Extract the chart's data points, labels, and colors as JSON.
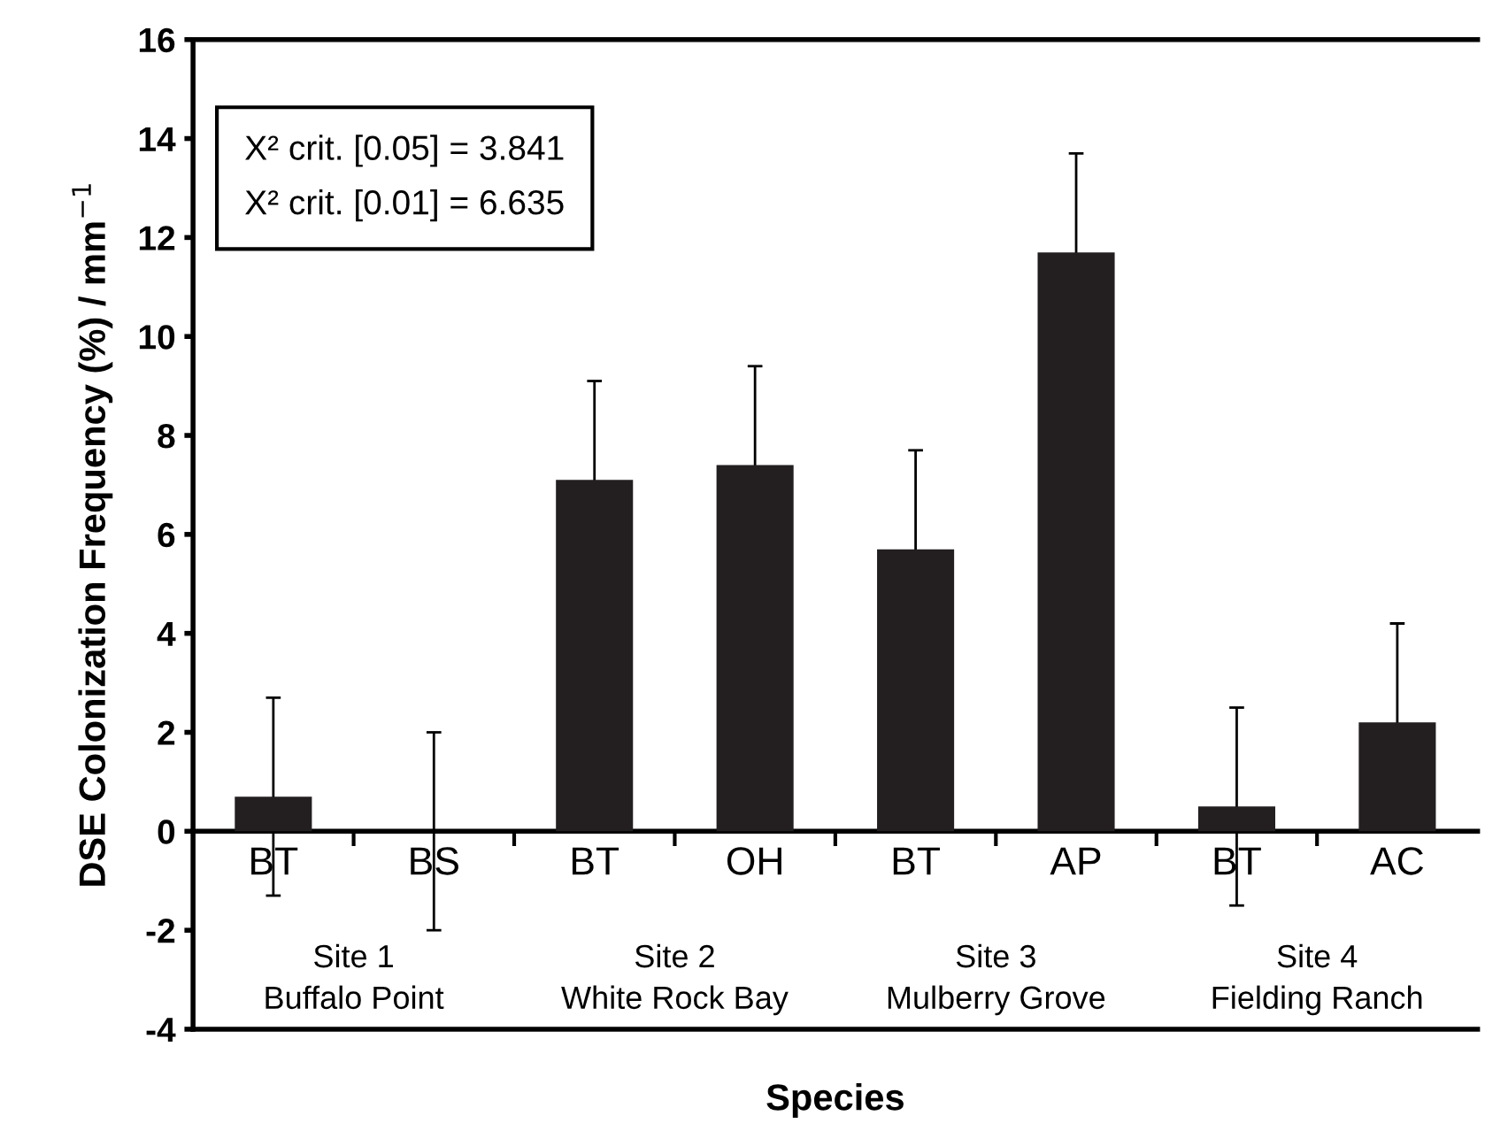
{
  "chart_data": {
    "type": "bar",
    "xlabel": "Species",
    "ylabel": "DSE Colonization Frequency (%) / mm$^{−1}$",
    "categories": [
      "BT",
      "BS",
      "BT",
      "OH",
      "BT",
      "AP",
      "BT",
      "AC"
    ],
    "values": [
      0.7,
      0,
      7.1,
      7.4,
      5.7,
      11.7,
      0.5,
      2.2
    ],
    "errors": [
      2.0,
      2.0,
      2.0,
      2.0,
      2.0,
      2.0,
      2.0,
      2.0
    ],
    "color": "#231f20",
    "ylim": [
      -4,
      16
    ],
    "yticks": [
      -4,
      -2,
      0,
      2,
      4,
      6,
      8,
      10,
      12,
      14,
      16
    ],
    "annotations": [
      "X² crit. [0.05] = 3.841\nX² crit. [0.01] = 6.635",
      "Site 1\nBuffalo Point",
      "Site 2\nWhite Rock Bay",
      "Site 3\nMulberry Grove",
      "Site 4\nFielding Ranch"
    ],
    "grid": false
  }
}
